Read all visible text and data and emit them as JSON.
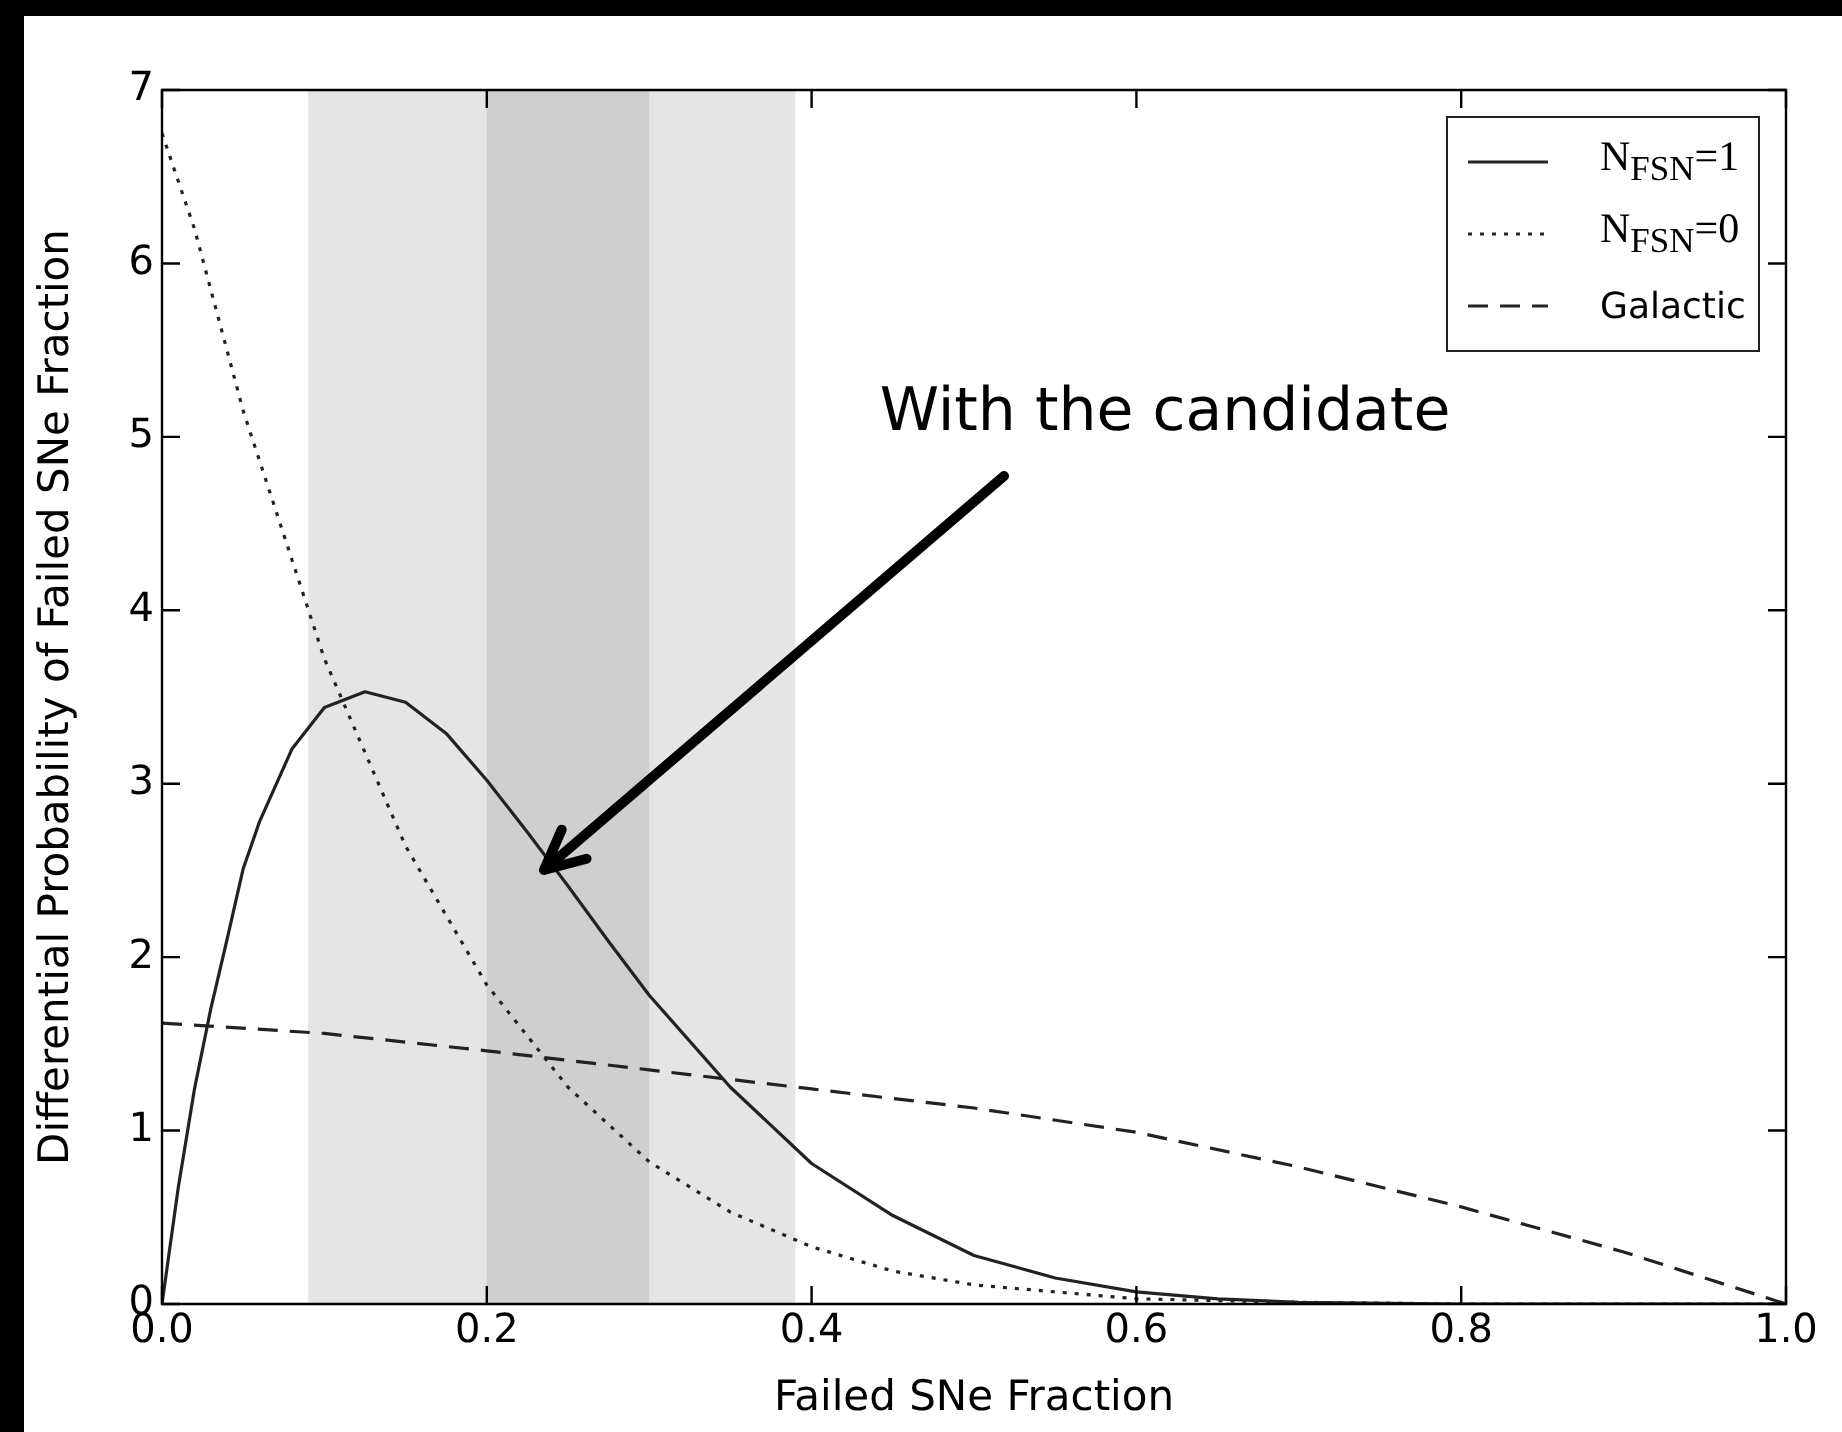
{
  "chart_data": {
    "type": "line",
    "xlabel": "Failed SNe Fraction",
    "ylabel": "Differential Probability of Failed SNe Fraction",
    "xlim": [
      0,
      1
    ],
    "ylim": [
      0,
      7
    ],
    "xticks": [
      {
        "value": 0,
        "label": "0.0"
      },
      {
        "value": 0.2,
        "label": "0.2"
      },
      {
        "value": 0.4,
        "label": "0.4"
      },
      {
        "value": 0.6,
        "label": "0.6"
      },
      {
        "value": 0.8,
        "label": "0.8"
      },
      {
        "value": 1,
        "label": "1.0"
      }
    ],
    "yticks": [
      0,
      1,
      2,
      3,
      4,
      5,
      6,
      7
    ],
    "grid": false,
    "legend": "top right",
    "marker": "none",
    "series": [
      {
        "name": "N$_{FSN}$=1",
        "color": "#222222",
        "line_style": "solid",
        "x": [
          0,
          0.01,
          0.02,
          0.03,
          0.04,
          0.05,
          0.06,
          0.08,
          0.1,
          0.125,
          0.15,
          0.175,
          0.2,
          0.225,
          0.25,
          0.275,
          0.3,
          0.35,
          0.4,
          0.45,
          0.5,
          0.55,
          0.6,
          0.65,
          0.7,
          0.8,
          1
        ],
        "values": [
          0,
          0.67,
          1.24,
          1.7,
          2.1,
          2.51,
          2.78,
          3.2,
          3.44,
          3.53,
          3.47,
          3.29,
          3.02,
          2.72,
          2.41,
          2.09,
          1.78,
          1.25,
          0.81,
          0.51,
          0.28,
          0.15,
          0.07,
          0.03,
          0.01,
          0,
          0
        ]
      },
      {
        "name": "N$_{FSN}$=0",
        "color": "#222222",
        "line_style": "dotted",
        "x": [
          0,
          0.02,
          0.05,
          0.1,
          0.15,
          0.2,
          0.25,
          0.3,
          0.35,
          0.4,
          0.45,
          0.5,
          0.6,
          0.7,
          0.8,
          1
        ],
        "values": [
          6.75,
          6.2,
          5.15,
          3.72,
          2.64,
          1.84,
          1.25,
          0.82,
          0.53,
          0.33,
          0.19,
          0.11,
          0.03,
          0.01,
          0,
          0
        ]
      },
      {
        "name": "Galactic",
        "color": "#222222",
        "line_style": "dashed",
        "x": [
          0,
          0.1,
          0.2,
          0.3,
          0.4,
          0.5,
          0.6,
          0.7,
          0.8,
          0.9,
          1
        ],
        "values": [
          1.62,
          1.56,
          1.46,
          1.35,
          1.24,
          1.13,
          0.99,
          0.79,
          0.56,
          0.3,
          0
        ]
      }
    ],
    "bands": [
      {
        "axis": "x",
        "from": 0.09,
        "to": 0.39,
        "color": "#e5e5e5"
      },
      {
        "axis": "x",
        "from": 0.2,
        "to": 0.3,
        "color": "#cfcfcf"
      }
    ],
    "annotations": [
      {
        "text": "With the candidate",
        "x": 0.235,
        "y": 2.5
      }
    ]
  }
}
